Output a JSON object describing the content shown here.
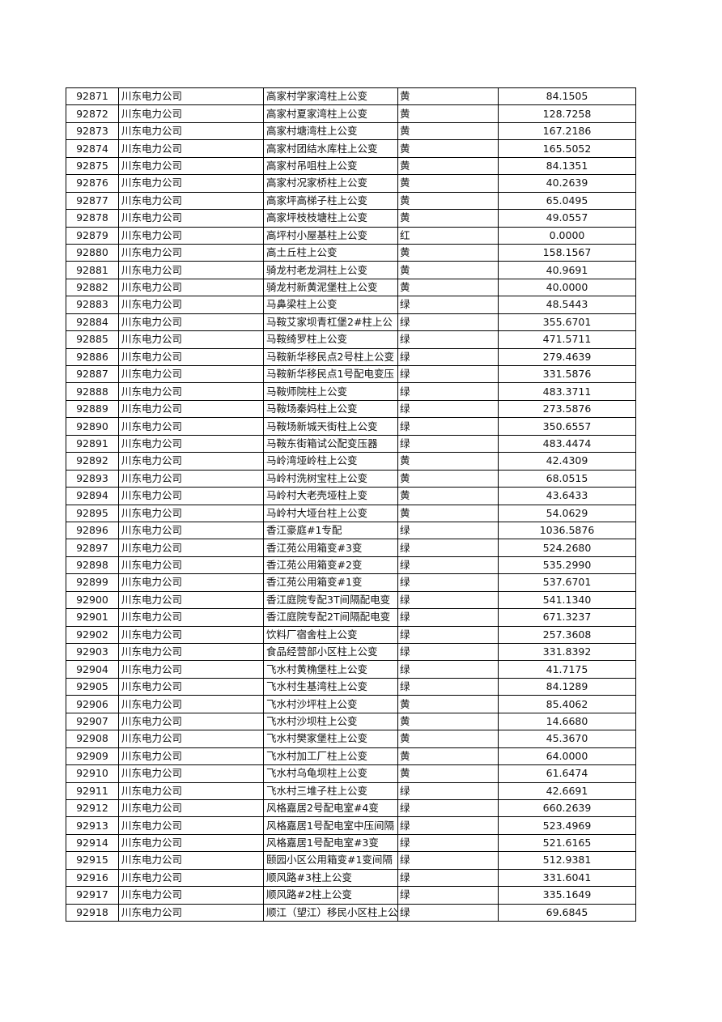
{
  "table": {
    "rows": [
      [
        "92871",
        "川东电力公司",
        "高家村学家湾柱上公变",
        "黄",
        "84.1505"
      ],
      [
        "92872",
        "川东电力公司",
        "高家村夏家湾柱上公变",
        "黄",
        "128.7258"
      ],
      [
        "92873",
        "川东电力公司",
        "高家村塘湾柱上公变",
        "黄",
        "167.2186"
      ],
      [
        "92874",
        "川东电力公司",
        "高家村团结水库柱上公变",
        "黄",
        "165.5052"
      ],
      [
        "92875",
        "川东电力公司",
        "高家村吊咀柱上公变",
        "黄",
        "84.1351"
      ],
      [
        "92876",
        "川东电力公司",
        "高家村况家桥柱上公变",
        "黄",
        "40.2639"
      ],
      [
        "92877",
        "川东电力公司",
        "高家坪高梯子柱上公变",
        "黄",
        "65.0495"
      ],
      [
        "92878",
        "川东电力公司",
        "高家坪枝枝塘柱上公变",
        "黄",
        "49.0557"
      ],
      [
        "92879",
        "川东电力公司",
        "高坪村小屋基柱上公变",
        "红",
        "0.0000"
      ],
      [
        "92880",
        "川东电力公司",
        "高土丘柱上公变",
        "黄",
        "158.1567"
      ],
      [
        "92881",
        "川东电力公司",
        "骑龙村老龙洞柱上公变",
        "黄",
        "40.9691"
      ],
      [
        "92882",
        "川东电力公司",
        "骑龙村新黄泥堡柱上公变",
        "黄",
        "40.0000"
      ],
      [
        "92883",
        "川东电力公司",
        "马鼻梁柱上公变",
        "绿",
        "48.5443"
      ],
      [
        "92884",
        "川东电力公司",
        "马鞍艾家坝青杠堡2#柱上公",
        "绿",
        "355.6701"
      ],
      [
        "92885",
        "川东电力公司",
        "马鞍绮罗柱上公变",
        "绿",
        "471.5711"
      ],
      [
        "92886",
        "川东电力公司",
        "马鞍新华移民点2号柱上公变",
        "绿",
        "279.4639"
      ],
      [
        "92887",
        "川东电力公司",
        "马鞍新华移民点1号配电变压",
        "绿",
        "331.5876"
      ],
      [
        "92888",
        "川东电力公司",
        "马鞍师院柱上公变",
        "绿",
        "483.3711"
      ],
      [
        "92889",
        "川东电力公司",
        "马鞍场秦妈柱上公变",
        "绿",
        "273.5876"
      ],
      [
        "92890",
        "川东电力公司",
        "马鞍场新城天街柱上公变",
        "绿",
        "350.6557"
      ],
      [
        "92891",
        "川东电力公司",
        "马鞍东街箱试公配变压器",
        "绿",
        "483.4474"
      ],
      [
        "92892",
        "川东电力公司",
        "马岭湾垭岭柱上公变",
        "黄",
        "42.4309"
      ],
      [
        "92893",
        "川东电力公司",
        "马岭村洗树宝柱上公变",
        "黄",
        "68.0515"
      ],
      [
        "92894",
        "川东电力公司",
        "马岭村大老壳垭柱上变",
        "黄",
        "43.6433"
      ],
      [
        "92895",
        "川东电力公司",
        "马岭村大垭台柱上公变",
        "黄",
        "54.0629"
      ],
      [
        "92896",
        "川东电力公司",
        "香江豪庭#1专配",
        "绿",
        "1036.5876"
      ],
      [
        "92897",
        "川东电力公司",
        "香江苑公用箱变#3变",
        "绿",
        "524.2680"
      ],
      [
        "92898",
        "川东电力公司",
        "香江苑公用箱变#2变",
        "绿",
        "535.2990"
      ],
      [
        "92899",
        "川东电力公司",
        "香江苑公用箱变#1变",
        "绿",
        "537.6701"
      ],
      [
        "92900",
        "川东电力公司",
        "香江庭院专配3T间隔配电变",
        "绿",
        "541.1340"
      ],
      [
        "92901",
        "川东电力公司",
        "香江庭院专配2T间隔配电变",
        "绿",
        "671.3237"
      ],
      [
        "92902",
        "川东电力公司",
        "饮料厂宿舍柱上公变",
        "绿",
        "257.3608"
      ],
      [
        "92903",
        "川东电力公司",
        "食品经营部小区柱上公变",
        "绿",
        "331.8392"
      ],
      [
        "92904",
        "川东电力公司",
        "飞水村黄桷堡柱上公变",
        "绿",
        "41.7175"
      ],
      [
        "92905",
        "川东电力公司",
        "飞水村生基湾柱上公变",
        "绿",
        "84.1289"
      ],
      [
        "92906",
        "川东电力公司",
        "飞水村沙坪柱上公变",
        "黄",
        "85.4062"
      ],
      [
        "92907",
        "川东电力公司",
        "飞水村沙坝柱上公变",
        "黄",
        "14.6680"
      ],
      [
        "92908",
        "川东电力公司",
        "飞水村樊家堡柱上公变",
        "黄",
        "45.3670"
      ],
      [
        "92909",
        "川东电力公司",
        "飞水村加工厂柱上公变",
        "黄",
        "64.0000"
      ],
      [
        "92910",
        "川东电力公司",
        "飞水村乌龟坝柱上公变",
        "黄",
        "61.6474"
      ],
      [
        "92911",
        "川东电力公司",
        "飞水村三堆子柱上公变",
        "绿",
        "42.6691"
      ],
      [
        "92912",
        "川东电力公司",
        "风格嘉居2号配电室#4变",
        "绿",
        "660.2639"
      ],
      [
        "92913",
        "川东电力公司",
        "风格嘉居1号配电室中压间隔",
        "绿",
        "523.4969"
      ],
      [
        "92914",
        "川东电力公司",
        "风格嘉居1号配电室#3变",
        "绿",
        "521.6165"
      ],
      [
        "92915",
        "川东电力公司",
        "颐园小区公用箱变#1变间隔",
        "绿",
        "512.9381"
      ],
      [
        "92916",
        "川东电力公司",
        "顺风路#3柱上公变",
        "绿",
        "331.6041"
      ],
      [
        "92917",
        "川东电力公司",
        "顺风路#2柱上公变",
        "绿",
        "335.1649"
      ],
      [
        "92918",
        "川东电力公司",
        "顺江（望江）移民小区柱上公",
        "绿",
        "69.6845"
      ]
    ]
  }
}
